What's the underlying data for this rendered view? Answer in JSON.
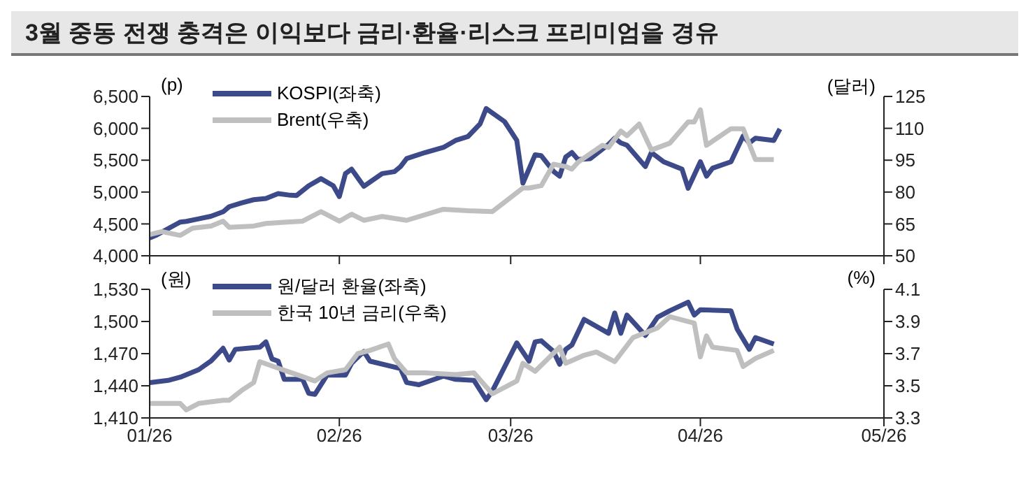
{
  "chart_data": [
    {
      "type": "line",
      "title": "3월 중동 전쟁 충격은 이익보다 금리·환율·리스크 프리미엄을 경유",
      "ylabel": "(p)",
      "y2label": "(달러)",
      "legend": "top left",
      "marker": "none",
      "line_style": "solid",
      "tick_labels": "y",
      "xlim": [
        "2026-01-01",
        "2026-05-01"
      ],
      "xticks": [
        {
          "value": "2026-01-01",
          "label": null
        },
        {
          "value": "2026-02-01",
          "label": null
        },
        {
          "value": "2026-03-01",
          "label": null
        },
        {
          "value": "2026-04-01",
          "label": null
        },
        {
          "value": "2026-05-01",
          "label": null
        }
      ],
      "ylim": [
        4000,
        6500
      ],
      "yticks": [
        {
          "value": 4000,
          "label": "4,000"
        },
        {
          "value": 4500,
          "label": "4,500"
        },
        {
          "value": 5000,
          "label": "5,000"
        },
        {
          "value": 5500,
          "label": "5,500"
        },
        {
          "value": 6000,
          "label": "6,000"
        },
        {
          "value": 6500,
          "label": "6,500"
        }
      ],
      "y2lim": [
        50,
        125
      ],
      "y2ticks": [
        50,
        65,
        80,
        95,
        110,
        125
      ],
      "series": [
        {
          "name": "KOSPI(좌축)",
          "color": "#3d4a8a",
          "x": [
            "2026-01-01",
            "2026-01-02",
            "2026-01-06",
            "2026-01-07",
            "2026-01-09",
            "2026-01-11",
            "2026-01-13",
            "2026-01-14",
            "2026-01-16",
            "2026-01-18",
            "2026-01-20",
            "2026-01-22",
            "2026-01-24",
            "2026-01-25",
            "2026-01-27",
            "2026-01-29",
            "2026-01-31",
            "2026-02-01",
            "2026-02-02",
            "2026-02-03",
            "2026-02-05",
            "2026-02-08",
            "2026-02-10",
            "2026-02-11",
            "2026-02-12",
            "2026-02-15",
            "2026-02-18",
            "2026-02-20",
            "2026-02-22",
            "2026-02-24",
            "2026-02-25",
            "2026-02-28",
            "2026-03-02",
            "2026-03-03",
            "2026-03-05",
            "2026-03-06",
            "2026-03-08",
            "2026-03-09",
            "2026-03-10",
            "2026-03-11",
            "2026-03-12",
            "2026-03-14",
            "2026-03-17",
            "2026-03-18",
            "2026-03-19",
            "2026-03-20",
            "2026-03-23",
            "2026-03-24",
            "2026-03-26",
            "2026-03-29",
            "2026-03-30",
            "2026-04-01",
            "2026-04-02",
            "2026-04-03",
            "2026-04-06",
            "2026-04-08",
            "2026-04-09",
            "2026-04-10",
            "2026-04-13",
            "2026-04-14"
          ],
          "values": [
            4280,
            4320,
            4530,
            4540,
            4580,
            4620,
            4690,
            4770,
            4830,
            4880,
            4900,
            4975,
            4950,
            4945,
            5100,
            5210,
            5100,
            4930,
            5290,
            5360,
            5090,
            5290,
            5320,
            5400,
            5525,
            5620,
            5700,
            5810,
            5870,
            6070,
            6310,
            6105,
            5810,
            5140,
            5585,
            5570,
            5325,
            5250,
            5550,
            5620,
            5510,
            5525,
            5750,
            5845,
            5770,
            5735,
            5400,
            5620,
            5475,
            5360,
            5060,
            5475,
            5250,
            5375,
            5475,
            5880,
            5770,
            5845,
            5810,
            5990
          ]
        },
        {
          "name": "Brent(우축)",
          "color": "#bfbfbf",
          "axis": "y2",
          "x": [
            "2026-01-01",
            "2026-01-03",
            "2026-01-06",
            "2026-01-08",
            "2026-01-11",
            "2026-01-13",
            "2026-01-14",
            "2026-01-18",
            "2026-01-20",
            "2026-01-23",
            "2026-01-26",
            "2026-01-29",
            "2026-02-01",
            "2026-02-03",
            "2026-02-05",
            "2026-02-08",
            "2026-02-12",
            "2026-02-18",
            "2026-02-22",
            "2026-02-26",
            "2026-03-03",
            "2026-03-04",
            "2026-03-06",
            "2026-03-08",
            "2026-03-10",
            "2026-03-11",
            "2026-03-12",
            "2026-03-16",
            "2026-03-17",
            "2026-03-19",
            "2026-03-20",
            "2026-03-22",
            "2026-03-24",
            "2026-03-27",
            "2026-03-30",
            "2026-03-31",
            "2026-04-01",
            "2026-04-02",
            "2026-04-06",
            "2026-04-08",
            "2026-04-10",
            "2026-04-13"
          ],
          "values": [
            60,
            61.4,
            59.6,
            63,
            64,
            66.3,
            63.4,
            64,
            65.2,
            65.8,
            66.3,
            70.8,
            66.3,
            69.6,
            66.7,
            68.5,
            66.7,
            71.9,
            71.2,
            70.8,
            81.9,
            81.9,
            83,
            93.1,
            92,
            90.8,
            94,
            102,
            101,
            108.7,
            106.5,
            112,
            99.8,
            103,
            113,
            113,
            118.7,
            102,
            109.8,
            109.8,
            95.3,
            95.3
          ]
        }
      ]
    },
    {
      "type": "line",
      "ylabel": "(원)",
      "y2label": "(%)",
      "legend": "top left",
      "marker": "none",
      "line_style": "solid",
      "xlim": [
        "2026-01-01",
        "2026-05-01"
      ],
      "xticks": [
        {
          "value": "2026-01-01",
          "label": "01/26"
        },
        {
          "value": "2026-02-01",
          "label": "02/26"
        },
        {
          "value": "2026-03-01",
          "label": "03/26"
        },
        {
          "value": "2026-04-01",
          "label": "04/26"
        },
        {
          "value": "2026-05-01",
          "label": "05/26"
        }
      ],
      "ylim": [
        1410,
        1530
      ],
      "yticks": [
        {
          "value": 1410,
          "label": "1,410"
        },
        {
          "value": 1440,
          "label": "1,440"
        },
        {
          "value": 1470,
          "label": "1,470"
        },
        {
          "value": 1500,
          "label": "1,500"
        },
        {
          "value": 1530,
          "label": "1,530"
        }
      ],
      "y2lim": [
        3.3,
        4.1
      ],
      "y2ticks": [
        3.3,
        3.5,
        3.7,
        3.9,
        4.1
      ],
      "series": [
        {
          "name": "원/달러 환율(좌축)",
          "color": "#3d4a8a",
          "x": [
            "2026-01-01",
            "2026-01-04",
            "2026-01-06",
            "2026-01-09",
            "2026-01-11",
            "2026-01-13",
            "2026-01-14",
            "2026-01-15",
            "2026-01-17",
            "2026-01-19",
            "2026-01-20",
            "2026-01-21",
            "2026-01-22",
            "2026-01-23",
            "2026-01-26",
            "2026-01-27",
            "2026-01-28",
            "2026-01-30",
            "2026-02-02",
            "2026-02-03",
            "2026-02-05",
            "2026-02-06",
            "2026-02-11",
            "2026-02-12",
            "2026-02-14",
            "2026-02-18",
            "2026-02-20",
            "2026-02-23",
            "2026-02-25",
            "2026-02-26",
            "2026-03-02",
            "2026-03-04",
            "2026-03-05",
            "2026-03-06",
            "2026-03-08",
            "2026-03-09",
            "2026-03-10",
            "2026-03-11",
            "2026-03-13",
            "2026-03-17",
            "2026-03-18",
            "2026-03-19",
            "2026-03-20",
            "2026-03-23",
            "2026-03-25",
            "2026-03-27",
            "2026-03-30",
            "2026-03-31",
            "2026-04-01",
            "2026-04-06",
            "2026-04-07",
            "2026-04-09",
            "2026-04-10",
            "2026-04-13"
          ],
          "values": [
            1443,
            1445,
            1448,
            1455,
            1463,
            1475,
            1464,
            1474,
            1475,
            1476,
            1481,
            1465,
            1463,
            1446,
            1446,
            1433,
            1432,
            1450,
            1450,
            1461,
            1472,
            1463,
            1456,
            1443,
            1441,
            1449,
            1446,
            1445,
            1427,
            1435,
            1480,
            1463,
            1481,
            1482,
            1472,
            1460,
            1474,
            1478,
            1502,
            1489,
            1508,
            1489,
            1506,
            1487,
            1504,
            1510,
            1518,
            1506,
            1511,
            1510,
            1493,
            1474,
            1485,
            1479
          ]
        },
        {
          "name": "한국 10년 금리(우축)",
          "color": "#bfbfbf",
          "axis": "y2",
          "x": [
            "2026-01-01",
            "2026-01-06",
            "2026-01-07",
            "2026-01-09",
            "2026-01-13",
            "2026-01-14",
            "2026-01-16",
            "2026-01-18",
            "2026-01-19",
            "2026-01-22",
            "2026-01-25",
            "2026-01-28",
            "2026-01-30",
            "2026-02-02",
            "2026-02-04",
            "2026-02-06",
            "2026-02-09",
            "2026-02-10",
            "2026-02-12",
            "2026-02-15",
            "2026-02-20",
            "2026-02-23",
            "2026-02-26",
            "2026-03-02",
            "2026-03-03",
            "2026-03-05",
            "2026-03-09",
            "2026-03-10",
            "2026-03-13",
            "2026-03-15",
            "2026-03-18",
            "2026-03-19",
            "2026-03-21",
            "2026-03-25",
            "2026-03-27",
            "2026-03-31",
            "2026-04-01",
            "2026-04-02",
            "2026-04-03",
            "2026-04-07",
            "2026-04-08",
            "2026-04-10",
            "2026-04-13"
          ],
          "values": [
            3.39,
            3.39,
            3.35,
            3.39,
            3.41,
            3.41,
            3.47,
            3.52,
            3.65,
            3.61,
            3.57,
            3.53,
            3.58,
            3.6,
            3.7,
            3.72,
            3.76,
            3.67,
            3.58,
            3.58,
            3.57,
            3.58,
            3.45,
            3.53,
            3.64,
            3.59,
            3.74,
            3.64,
            3.69,
            3.71,
            3.65,
            3.7,
            3.8,
            3.86,
            3.93,
            3.89,
            3.68,
            3.81,
            3.74,
            3.72,
            3.62,
            3.67,
            3.72
          ]
        }
      ]
    }
  ]
}
